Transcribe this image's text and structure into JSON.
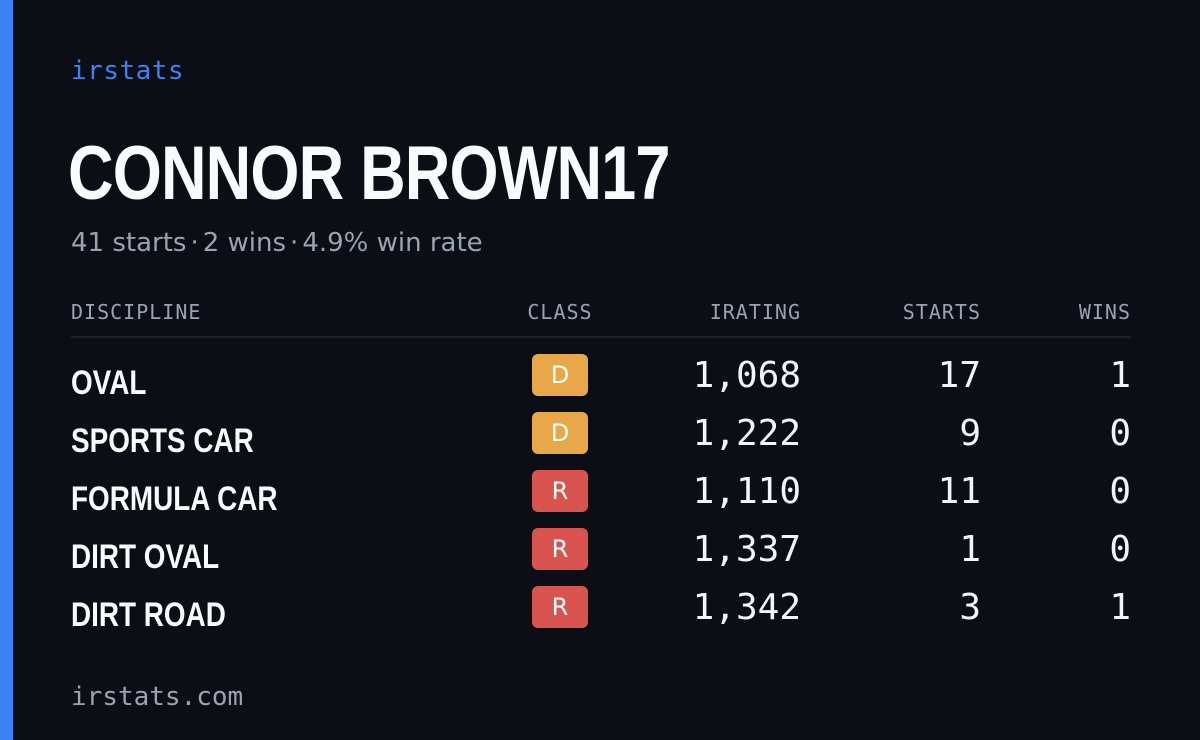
{
  "brand": "irstats",
  "driver_name": "CONNOR BROWN17",
  "summary": {
    "starts": "41 starts",
    "wins": "2 wins",
    "win_rate": "4.9% win rate",
    "separator": "·"
  },
  "table": {
    "headers": {
      "discipline": "DISCIPLINE",
      "class": "CLASS",
      "irating": "IRATING",
      "starts": "STARTS",
      "wins": "WINS"
    },
    "rows": [
      {
        "discipline": "OVAL",
        "class": "D",
        "class_color": "#e8a84a",
        "irating": "1,068",
        "starts": "17",
        "wins": "1"
      },
      {
        "discipline": "SPORTS CAR",
        "class": "D",
        "class_color": "#e8a84a",
        "irating": "1,222",
        "starts": "9",
        "wins": "0"
      },
      {
        "discipline": "FORMULA CAR",
        "class": "R",
        "class_color": "#d9534f",
        "irating": "1,110",
        "starts": "11",
        "wins": "0"
      },
      {
        "discipline": "DIRT OVAL",
        "class": "R",
        "class_color": "#d9534f",
        "irating": "1,337",
        "starts": "1",
        "wins": "0"
      },
      {
        "discipline": "DIRT ROAD",
        "class": "R",
        "class_color": "#d9534f",
        "irating": "1,342",
        "starts": "3",
        "wins": "1"
      }
    ]
  },
  "footer": "irstats.com",
  "colors": {
    "accent": "#3b82f6",
    "background": "#0b0e15"
  }
}
